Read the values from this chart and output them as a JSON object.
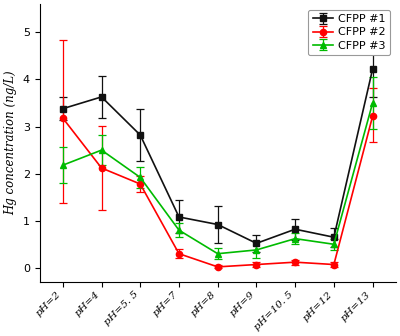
{
  "x_labels_display": [
    "pH=2",
    "pH=4",
    "pH=5. 5",
    "pH=7",
    "pH=8",
    "pH=9",
    "pH=10. 5",
    "pH=12",
    "pH=13"
  ],
  "series": [
    {
      "label": "CFPP #1",
      "color": "#111111",
      "marker": "s",
      "markercolor": "#111111",
      "values": [
        3.38,
        3.63,
        2.82,
        1.08,
        0.92,
        0.52,
        0.82,
        0.65,
        4.22
      ],
      "yerr_lo": [
        0.25,
        0.45,
        0.55,
        0.35,
        0.4,
        0.18,
        0.22,
        0.2,
        0.6
      ],
      "yerr_hi": [
        0.25,
        0.45,
        0.55,
        0.35,
        0.4,
        0.18,
        0.22,
        0.2,
        0.6
      ]
    },
    {
      "label": "CFPP #2",
      "color": "#ff0000",
      "marker": "o",
      "markercolor": "#ff0000",
      "values": [
        3.18,
        2.12,
        1.78,
        0.3,
        0.02,
        0.07,
        0.12,
        0.07,
        3.22
      ],
      "yerr_lo": [
        1.8,
        0.9,
        0.18,
        0.1,
        0.02,
        0.05,
        0.05,
        0.05,
        0.55
      ],
      "yerr_hi": [
        1.65,
        0.9,
        0.18,
        0.1,
        0.05,
        0.05,
        0.05,
        0.05,
        0.6
      ]
    },
    {
      "label": "CFPP #3",
      "color": "#00bb00",
      "marker": "^",
      "markercolor": "#00bb00",
      "values": [
        2.18,
        2.5,
        1.92,
        0.8,
        0.3,
        0.38,
        0.62,
        0.5,
        3.5
      ],
      "yerr_lo": [
        0.38,
        0.32,
        0.22,
        0.15,
        0.12,
        0.18,
        0.12,
        0.12,
        0.55
      ],
      "yerr_hi": [
        0.38,
        0.32,
        0.22,
        0.15,
        0.12,
        0.18,
        0.12,
        0.12,
        0.55
      ]
    }
  ],
  "ylabel": "Hg concentration (ng/L)",
  "ylim": [
    -0.3,
    5.6
  ],
  "yticks": [
    0,
    1,
    2,
    3,
    4,
    5
  ],
  "figsize": [
    4.0,
    3.36
  ],
  "dpi": 100,
  "legend_loc": "upper right",
  "background_color": "#ffffff"
}
